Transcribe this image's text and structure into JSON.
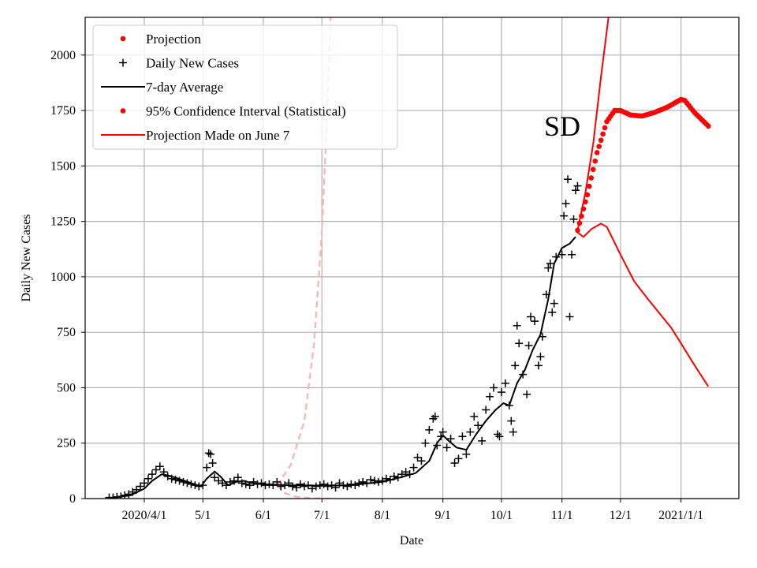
{
  "chart_data": {
    "type": "scatter",
    "xlabel": "Date",
    "ylabel": "Daily New Cases",
    "annotation": "SD",
    "xlim": [
      "2020-03-02",
      "2021-01-31"
    ],
    "ylim": [
      0,
      2171
    ],
    "grid": true,
    "legend_placement": "top-left",
    "x_ticks": [
      {
        "date": "2020-04-01",
        "label": "2020/4/1"
      },
      {
        "date": "2020-05-01",
        "label": "5/1"
      },
      {
        "date": "2020-06-01",
        "label": "6/1"
      },
      {
        "date": "2020-07-01",
        "label": "7/1"
      },
      {
        "date": "2020-08-01",
        "label": "8/1"
      },
      {
        "date": "2020-09-01",
        "label": "9/1"
      },
      {
        "date": "2020-10-01",
        "label": "10/1"
      },
      {
        "date": "2020-11-01",
        "label": "11/1"
      },
      {
        "date": "2020-12-01",
        "label": "12/1"
      },
      {
        "date": "2021-01-01",
        "label": "2021/1/1"
      }
    ],
    "y_ticks": [
      0,
      250,
      500,
      750,
      1000,
      1250,
      1500,
      1750,
      2000
    ],
    "legend": [
      {
        "label": "Projection",
        "marker": "dot",
        "color": "#ff0000"
      },
      {
        "label": "Daily New Cases",
        "marker": "plus",
        "color": "#000000"
      },
      {
        "label": "7-day Average",
        "marker": "line",
        "color": "#000000"
      },
      {
        "label": "95% Confidence Interval (Statistical)",
        "marker": "dot",
        "color": "#ff0000"
      },
      {
        "label": "Projection Made on June 7",
        "marker": "line",
        "color": "#ff0000"
      }
    ],
    "series": {
      "daily_new_cases": [
        [
          "2020-03-14",
          5
        ],
        [
          "2020-03-16",
          5
        ],
        [
          "2020-03-18",
          8
        ],
        [
          "2020-03-20",
          10
        ],
        [
          "2020-03-22",
          15
        ],
        [
          "2020-03-24",
          20
        ],
        [
          "2020-03-26",
          30
        ],
        [
          "2020-03-28",
          40
        ],
        [
          "2020-03-30",
          55
        ],
        [
          "2020-04-01",
          70
        ],
        [
          "2020-04-03",
          90
        ],
        [
          "2020-04-05",
          110
        ],
        [
          "2020-04-07",
          130
        ],
        [
          "2020-04-09",
          145
        ],
        [
          "2020-04-11",
          120
        ],
        [
          "2020-04-13",
          100
        ],
        [
          "2020-04-15",
          90
        ],
        [
          "2020-04-17",
          85
        ],
        [
          "2020-04-19",
          80
        ],
        [
          "2020-04-21",
          75
        ],
        [
          "2020-04-23",
          70
        ],
        [
          "2020-04-25",
          65
        ],
        [
          "2020-04-27",
          60
        ],
        [
          "2020-04-29",
          55
        ],
        [
          "2020-05-01",
          60
        ],
        [
          "2020-05-03",
          140
        ],
        [
          "2020-05-04",
          205
        ],
        [
          "2020-05-05",
          200
        ],
        [
          "2020-05-06",
          160
        ],
        [
          "2020-05-07",
          95
        ],
        [
          "2020-05-09",
          80
        ],
        [
          "2020-05-11",
          70
        ],
        [
          "2020-05-13",
          60
        ],
        [
          "2020-05-15",
          75
        ],
        [
          "2020-05-17",
          80
        ],
        [
          "2020-05-19",
          95
        ],
        [
          "2020-05-21",
          70
        ],
        [
          "2020-05-23",
          65
        ],
        [
          "2020-05-25",
          60
        ],
        [
          "2020-05-27",
          75
        ],
        [
          "2020-05-29",
          65
        ],
        [
          "2020-05-31",
          70
        ],
        [
          "2020-06-02",
          60
        ],
        [
          "2020-06-04",
          65
        ],
        [
          "2020-06-06",
          60
        ],
        [
          "2020-06-08",
          75
        ],
        [
          "2020-06-10",
          55
        ],
        [
          "2020-06-12",
          60
        ],
        [
          "2020-06-14",
          70
        ],
        [
          "2020-06-16",
          55
        ],
        [
          "2020-06-18",
          50
        ],
        [
          "2020-06-20",
          65
        ],
        [
          "2020-06-22",
          55
        ],
        [
          "2020-06-24",
          60
        ],
        [
          "2020-06-26",
          45
        ],
        [
          "2020-06-28",
          55
        ],
        [
          "2020-06-30",
          60
        ],
        [
          "2020-07-02",
          65
        ],
        [
          "2020-07-04",
          55
        ],
        [
          "2020-07-06",
          60
        ],
        [
          "2020-07-08",
          50
        ],
        [
          "2020-07-10",
          70
        ],
        [
          "2020-07-12",
          60
        ],
        [
          "2020-07-14",
          55
        ],
        [
          "2020-07-16",
          65
        ],
        [
          "2020-07-18",
          60
        ],
        [
          "2020-07-20",
          70
        ],
        [
          "2020-07-22",
          75
        ],
        [
          "2020-07-24",
          70
        ],
        [
          "2020-07-26",
          85
        ],
        [
          "2020-07-28",
          80
        ],
        [
          "2020-07-30",
          75
        ],
        [
          "2020-08-01",
          80
        ],
        [
          "2020-08-03",
          90
        ],
        [
          "2020-08-05",
          85
        ],
        [
          "2020-08-07",
          100
        ],
        [
          "2020-08-09",
          95
        ],
        [
          "2020-08-11",
          110
        ],
        [
          "2020-08-13",
          120
        ],
        [
          "2020-08-15",
          110
        ],
        [
          "2020-08-17",
          140
        ],
        [
          "2020-08-19",
          185
        ],
        [
          "2020-08-21",
          170
        ],
        [
          "2020-08-23",
          250
        ],
        [
          "2020-08-25",
          310
        ],
        [
          "2020-08-27",
          360
        ],
        [
          "2020-08-28",
          370
        ],
        [
          "2020-08-29",
          240
        ],
        [
          "2020-08-31",
          280
        ],
        [
          "2020-09-01",
          300
        ],
        [
          "2020-09-03",
          230
        ],
        [
          "2020-09-05",
          270
        ],
        [
          "2020-09-07",
          160
        ],
        [
          "2020-09-09",
          180
        ],
        [
          "2020-09-11",
          280
        ],
        [
          "2020-09-13",
          200
        ],
        [
          "2020-09-15",
          300
        ],
        [
          "2020-09-17",
          370
        ],
        [
          "2020-09-19",
          330
        ],
        [
          "2020-09-21",
          260
        ],
        [
          "2020-09-23",
          400
        ],
        [
          "2020-09-25",
          460
        ],
        [
          "2020-09-27",
          500
        ],
        [
          "2020-09-29",
          290
        ],
        [
          "2020-09-30",
          280
        ],
        [
          "2020-10-01",
          480
        ],
        [
          "2020-10-03",
          520
        ],
        [
          "2020-10-05",
          420
        ],
        [
          "2020-10-06",
          350
        ],
        [
          "2020-10-07",
          300
        ],
        [
          "2020-10-08",
          600
        ],
        [
          "2020-10-09",
          780
        ],
        [
          "2020-10-10",
          700
        ],
        [
          "2020-10-12",
          560
        ],
        [
          "2020-10-14",
          470
        ],
        [
          "2020-10-15",
          690
        ],
        [
          "2020-10-16",
          820
        ],
        [
          "2020-10-18",
          800
        ],
        [
          "2020-10-20",
          600
        ],
        [
          "2020-10-21",
          640
        ],
        [
          "2020-10-22",
          730
        ],
        [
          "2020-10-24",
          920
        ],
        [
          "2020-10-25",
          1040
        ],
        [
          "2020-10-26",
          1060
        ],
        [
          "2020-10-27",
          840
        ],
        [
          "2020-10-28",
          880
        ],
        [
          "2020-10-29",
          1090
        ],
        [
          "2020-11-01",
          1100
        ],
        [
          "2020-11-02",
          1275
        ],
        [
          "2020-11-03",
          1330
        ],
        [
          "2020-11-04",
          1440
        ],
        [
          "2020-11-05",
          820
        ],
        [
          "2020-11-06",
          1100
        ],
        [
          "2020-11-07",
          1260
        ],
        [
          "2020-11-08",
          1390
        ],
        [
          "2020-11-09",
          1410
        ]
      ],
      "seven_day_average": [
        [
          "2020-03-14",
          0
        ],
        [
          "2020-03-25",
          15
        ],
        [
          "2020-04-01",
          45
        ],
        [
          "2020-04-05",
          80
        ],
        [
          "2020-04-10",
          110
        ],
        [
          "2020-04-15",
          100
        ],
        [
          "2020-04-20",
          85
        ],
        [
          "2020-04-25",
          70
        ],
        [
          "2020-04-30",
          55
        ],
        [
          "2020-05-03",
          90
        ],
        [
          "2020-05-07",
          122
        ],
        [
          "2020-05-10",
          100
        ],
        [
          "2020-05-14",
          60
        ],
        [
          "2020-05-18",
          75
        ],
        [
          "2020-05-22",
          80
        ],
        [
          "2020-05-26",
          70
        ],
        [
          "2020-06-01",
          65
        ],
        [
          "2020-06-15",
          60
        ],
        [
          "2020-07-01",
          58
        ],
        [
          "2020-07-15",
          60
        ],
        [
          "2020-08-01",
          75
        ],
        [
          "2020-08-10",
          95
        ],
        [
          "2020-08-18",
          115
        ],
        [
          "2020-08-25",
          170
        ],
        [
          "2020-08-29",
          250
        ],
        [
          "2020-09-01",
          285
        ],
        [
          "2020-09-04",
          260
        ],
        [
          "2020-09-08",
          230
        ],
        [
          "2020-09-13",
          220
        ],
        [
          "2020-09-18",
          290
        ],
        [
          "2020-09-23",
          350
        ],
        [
          "2020-09-28",
          400
        ],
        [
          "2020-10-02",
          430
        ],
        [
          "2020-10-05",
          420
        ],
        [
          "2020-10-09",
          520
        ],
        [
          "2020-10-13",
          580
        ],
        [
          "2020-10-17",
          670
        ],
        [
          "2020-10-21",
          740
        ],
        [
          "2020-10-25",
          900
        ],
        [
          "2020-10-28",
          1060
        ],
        [
          "2020-11-01",
          1130
        ],
        [
          "2020-11-05",
          1150
        ],
        [
          "2020-11-08",
          1180
        ]
      ],
      "projection": [
        [
          "2020-11-09",
          1210
        ],
        [
          "2020-11-14",
          1370
        ],
        [
          "2020-11-19",
          1560
        ],
        [
          "2020-11-24",
          1700
        ],
        [
          "2020-11-28",
          1750
        ],
        [
          "2020-12-01",
          1750
        ],
        [
          "2020-12-06",
          1730
        ],
        [
          "2020-12-12",
          1725
        ],
        [
          "2020-12-18",
          1740
        ],
        [
          "2020-12-25",
          1765
        ],
        [
          "2021-01-01",
          1800
        ],
        [
          "2021-01-03",
          1795
        ],
        [
          "2021-01-08",
          1740
        ],
        [
          "2021-01-15",
          1680
        ]
      ],
      "ci_upper": [
        [
          "2020-11-09",
          1210
        ],
        [
          "2020-11-13",
          1380
        ],
        [
          "2020-11-17",
          1600
        ],
        [
          "2020-11-21",
          1900
        ],
        [
          "2020-11-26",
          2250
        ]
      ],
      "ci_lower": [
        [
          "2020-11-09",
          1200
        ],
        [
          "2020-11-12",
          1180
        ],
        [
          "2020-11-16",
          1215
        ],
        [
          "2020-11-21",
          1240
        ],
        [
          "2020-11-24",
          1225
        ],
        [
          "2020-12-01",
          1100
        ],
        [
          "2020-12-08",
          980
        ],
        [
          "2020-12-15",
          900
        ],
        [
          "2020-12-27",
          770
        ],
        [
          "2021-01-01",
          700
        ],
        [
          "2021-01-08",
          600
        ],
        [
          "2021-01-15",
          505
        ]
      ],
      "june7_projection": [
        [
          "2020-06-08",
          60
        ],
        [
          "2020-06-20",
          60
        ],
        [
          "2020-07-08",
          60
        ]
      ],
      "june7_upper": [
        [
          "2020-06-08",
          60
        ],
        [
          "2020-06-15",
          150
        ],
        [
          "2020-06-22",
          350
        ],
        [
          "2020-06-27",
          700
        ],
        [
          "2020-07-01",
          1200
        ],
        [
          "2020-07-04",
          1800
        ],
        [
          "2020-07-06",
          2300
        ]
      ],
      "june7_lower": [
        [
          "2020-06-08",
          60
        ],
        [
          "2020-06-12",
          25
        ],
        [
          "2020-06-18",
          8
        ],
        [
          "2020-06-25",
          2
        ],
        [
          "2020-07-08",
          0
        ]
      ]
    }
  }
}
